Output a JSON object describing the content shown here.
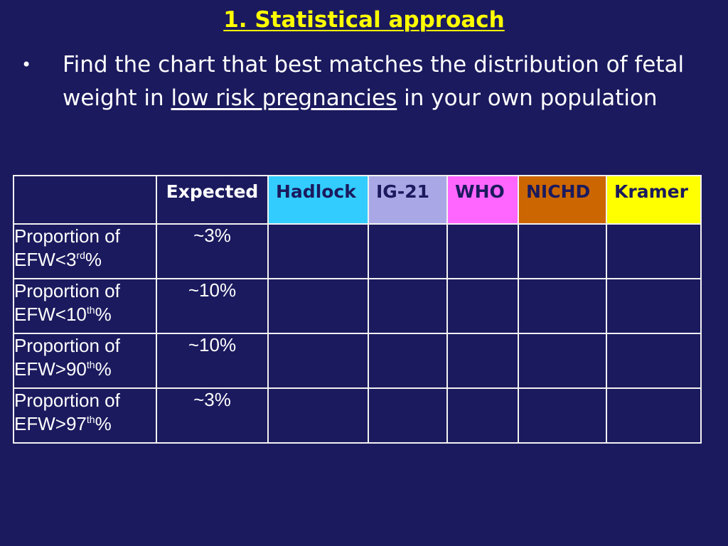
{
  "title": "1. Statistical approach",
  "bullet": {
    "before": "Find the chart that best matches the distribution of fetal weight in ",
    "underlined": "low risk pregnancies",
    "after": " in your own population"
  },
  "table": {
    "headers": [
      "",
      "Expected",
      "Hadlock",
      "IG-21",
      "WHO",
      "NICHD",
      "Kramer"
    ],
    "header_colors": {
      "Hadlock": "#33ccff",
      "IG-21": "#a9a7e6",
      "WHO": "#ff66ff",
      "NICHD": "#cc6600",
      "Kramer": "#ffff00"
    },
    "rows": [
      {
        "line1": "Proportion of",
        "line2": "EFW<3",
        "sup": "rd",
        "suffix": "%",
        "expected": "~3%"
      },
      {
        "line1": "Proportion of",
        "line2": "EFW<10",
        "sup": "th",
        "suffix": "%",
        "expected": "~10%"
      },
      {
        "line1": "Proportion of",
        "line2": "EFW>90",
        "sup": "th",
        "suffix": "%",
        "expected": "~10%"
      },
      {
        "line1": "Proportion of",
        "line2": "EFW>97",
        "sup": "th",
        "suffix": "%",
        "expected": "~3%"
      }
    ]
  }
}
